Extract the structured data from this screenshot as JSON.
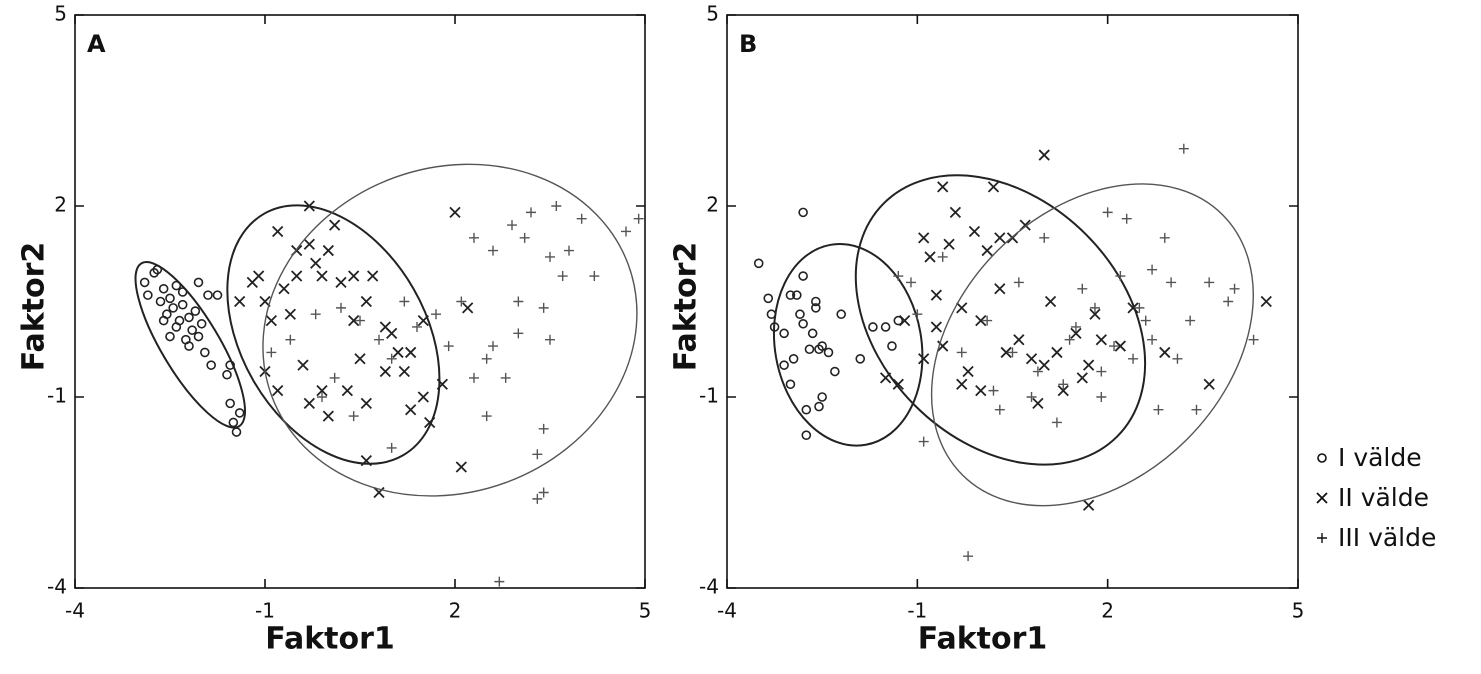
{
  "chart_data": [
    {
      "type": "scatter",
      "title": "A",
      "xlabel": "Faktor1",
      "ylabel": "Faktor2",
      "xlim": [
        -4,
        5
      ],
      "ylim": [
        -4,
        5
      ],
      "xticks": [
        -4,
        -1,
        2,
        5
      ],
      "yticks": [
        -4,
        -1,
        2,
        5
      ],
      "series": [
        {
          "name": "I välde",
          "marker": "o",
          "color": "#222222",
          "x": [
            -2.9,
            -2.85,
            -2.75,
            -2.7,
            -2.65,
            -2.6,
            -2.55,
            -2.5,
            -2.45,
            -2.4,
            -2.4,
            -2.35,
            -2.3,
            -2.25,
            -2.2,
            -2.15,
            -2.1,
            -2.05,
            -2.0,
            -1.95,
            -2.05,
            -1.9,
            -1.85,
            -1.75,
            -1.6,
            -1.55,
            -1.5,
            -1.45,
            -1.4,
            -1.55,
            -2.5,
            -2.6,
            -2.3,
            -2.2
          ],
          "values": [
            0.8,
            0.6,
            0.95,
            1.0,
            0.5,
            0.7,
            0.3,
            0.55,
            0.4,
            0.75,
            0.1,
            0.2,
            0.45,
            -0.1,
            0.25,
            0.05,
            0.35,
            -0.05,
            0.15,
            -0.3,
            0.8,
            0.6,
            -0.5,
            0.6,
            -0.65,
            -1.1,
            -1.4,
            -1.55,
            -1.25,
            -0.5,
            -0.05,
            0.2,
            0.65,
            -0.2
          ],
          "ellipse": {
            "cx": -2.18,
            "cy": -0.18,
            "rx": 1.5,
            "ry": 0.45,
            "angle": -59
          }
        },
        {
          "name": "II välde",
          "marker": "x",
          "color": "#222222",
          "x": [
            -1.4,
            -1.2,
            -1.1,
            -0.8,
            -0.6,
            -0.5,
            -0.3,
            -0.2,
            -0.1,
            0,
            0.1,
            0.2,
            0.4,
            0.6,
            0.7,
            -1.0,
            -0.9,
            -0.7,
            -1.0,
            -0.8,
            -0.4,
            -0.3,
            -0.1,
            0,
            0.3,
            0.5,
            0.6,
            0.9,
            0.6,
            0.8,
            1.3,
            1.5,
            1.6,
            1.1,
            1.2,
            1.5,
            1.8,
            2.1,
            2.2,
            2.0,
            1.0,
            1.3,
            0.4,
            0.9,
            -0.3,
            -0.5
          ],
          "values": [
            0.5,
            0.8,
            0.9,
            1.6,
            0.3,
            1.3,
            2.0,
            1.1,
            0.9,
            1.3,
            1.7,
            0.8,
            0.9,
            0.5,
            0.9,
            0.5,
            0.2,
            0.7,
            -0.6,
            -0.9,
            -0.5,
            -1.1,
            -0.9,
            -1.3,
            -0.9,
            -0.4,
            -1.1,
            -0.6,
            -2.0,
            -2.5,
            -1.2,
            -1.0,
            -1.4,
            -0.3,
            -0.6,
            0.2,
            -0.8,
            -2.1,
            0.4,
            1.9,
            0.0,
            -0.3,
            0.2,
            0.1,
            1.4,
            0.9
          ],
          "ellipse": {
            "cx": 0.08,
            "cy": -0.02,
            "rx": 2.2,
            "ry": 1.45,
            "angle": -60
          }
        },
        {
          "name": "III välde",
          "marker": "+",
          "color": "#555555",
          "x": [
            -0.9,
            -0.6,
            -0.2,
            0.2,
            0.5,
            0.8,
            1.0,
            1.2,
            1.4,
            1.7,
            1.9,
            2.1,
            2.3,
            2.5,
            2.5,
            2.6,
            2.6,
            2.8,
            2.9,
            3.0,
            3.1,
            3.2,
            3.3,
            3.4,
            3.4,
            3.5,
            3.6,
            3.7,
            3.8,
            4.0,
            4.2,
            4.7,
            4.9,
            2.7,
            3.4,
            3.3,
            0.4,
            1.0,
            0.1,
            -0.1,
            2.3,
            3.0,
            3.5
          ],
          "values": [
            -0.3,
            -0.1,
            0.3,
            0.4,
            0.2,
            -0.1,
            -0.4,
            0.5,
            0.1,
            0.3,
            -0.2,
            0.5,
            1.5,
            -0.4,
            -1.3,
            1.3,
            -0.2,
            -0.7,
            1.7,
            0.5,
            1.5,
            1.9,
            -1.9,
            0.4,
            -1.5,
            1.2,
            2.0,
            0.9,
            1.3,
            1.8,
            0.9,
            1.6,
            1.8,
            -3.9,
            -2.5,
            -2.6,
            -1.3,
            -1.8,
            -0.7,
            -1.0,
            -0.7,
            0.0,
            -0.1
          ],
          "ellipse": {
            "cx": 1.92,
            "cy": 0.05,
            "rx": 3.0,
            "ry": 2.55,
            "angle": 20
          }
        }
      ]
    },
    {
      "type": "scatter",
      "title": "B",
      "xlabel": "Faktor1",
      "ylabel": "Faktor2",
      "xlim": [
        -4,
        5
      ],
      "ylim": [
        -4,
        5
      ],
      "xticks": [
        -4,
        -1,
        2,
        5
      ],
      "yticks": [
        -4,
        -1,
        2,
        5
      ],
      "series": [
        {
          "name": "I välde",
          "marker": "o",
          "color": "#222222",
          "x": [
            -3.5,
            -3.35,
            -3.3,
            -3.25,
            -3.1,
            -3.1,
            -3.0,
            -2.95,
            -2.9,
            -2.85,
            -2.8,
            -2.8,
            -2.7,
            -2.6,
            -2.55,
            -2.55,
            -2.5,
            -2.75,
            -2.75,
            -2.8,
            -2.6,
            -2.4,
            -2.3,
            -2.2,
            -1.9,
            -1.7,
            -1.5,
            -1.3,
            -1.4,
            -3.0,
            -2.65,
            -2.5
          ],
          "values": [
            1.1,
            0.55,
            0.3,
            0.1,
            0.0,
            -0.5,
            -0.8,
            -0.4,
            0.6,
            0.3,
            0.9,
            0.15,
            -0.25,
            0.4,
            -0.25,
            -1.15,
            -1.0,
            -1.2,
            -1.6,
            1.9,
            0.5,
            -0.3,
            -0.6,
            0.3,
            -0.4,
            0.1,
            0.1,
            0.2,
            -0.2,
            0.6,
            0.0,
            -0.2
          ],
          "ellipse": {
            "cx": -2.09,
            "cy": -0.18,
            "rx": 1.6,
            "ry": 1.15,
            "angle": -80
          }
        },
        {
          "name": "II välde",
          "marker": "x",
          "color": "#222222",
          "x": [
            -1.5,
            -1.3,
            -1.2,
            -0.9,
            -0.8,
            -0.7,
            -0.7,
            -0.6,
            -0.4,
            -0.3,
            -0.2,
            -0.1,
            0,
            0.1,
            0.2,
            0.3,
            0.5,
            0.7,
            0.4,
            0.6,
            0.8,
            0.9,
            1.0,
            1.1,
            1.2,
            1.3,
            1.5,
            1.6,
            1.7,
            1.8,
            1.0,
            1.7,
            -0.9,
            -0.6,
            -0.3,
            0.0,
            1.9,
            2.2,
            2.4,
            2.9,
            3.6,
            4.5,
            -0.5,
            0.3
          ],
          "values": [
            -0.7,
            -0.8,
            0.2,
            1.5,
            1.2,
            0.6,
            0.1,
            2.3,
            1.9,
            0.4,
            -0.6,
            1.6,
            0.2,
            1.3,
            2.3,
            1.5,
            1.5,
            1.7,
            -0.3,
            -0.1,
            -0.4,
            -1.1,
            -0.5,
            0.5,
            -0.3,
            -0.9,
            0.0,
            -0.7,
            -0.5,
            0.3,
            2.8,
            -2.7,
            -0.4,
            -0.2,
            -0.8,
            -0.9,
            -0.1,
            -0.2,
            0.4,
            -0.3,
            -0.8,
            0.5,
            1.4,
            0.7
          ],
          "ellipse": {
            "cx": 0.31,
            "cy": 0.21,
            "rx": 2.6,
            "ry": 1.9,
            "angle": -45
          }
        },
        {
          "name": "III välde",
          "marker": "+",
          "color": "#555555",
          "x": [
            -1.3,
            -1.1,
            -1.0,
            -0.9,
            -0.6,
            -0.3,
            -0.2,
            0.1,
            0.2,
            0.3,
            0.5,
            0.8,
            0.9,
            1.2,
            1.3,
            1.5,
            1.6,
            1.8,
            1.9,
            2.0,
            2.1,
            2.3,
            2.5,
            2.7,
            2.8,
            3.0,
            3.2,
            3.3,
            3.6,
            3.9,
            4.0,
            4.3,
            1.9,
            2.4,
            2.7,
            3.1,
            3.4,
            1.0,
            0.6,
            2.9,
            2.6,
            1.4,
            2.2
          ],
          "values": [
            0.9,
            0.8,
            0.3,
            -1.7,
            1.2,
            -0.3,
            -3.5,
            0.2,
            -0.9,
            -1.2,
            -0.3,
            -1.0,
            -0.6,
            -1.4,
            -0.8,
            0.1,
            0.7,
            0.4,
            -0.6,
            1.9,
            -0.2,
            1.8,
            0.4,
            1.0,
            -1.2,
            0.8,
            2.9,
            0.2,
            0.8,
            0.5,
            0.7,
            -0.1,
            -1.0,
            -0.4,
            -0.1,
            -0.4,
            -1.2,
            1.5,
            0.8,
            1.5,
            0.2,
            -0.1,
            0.9
          ],
          "ellipse": {
            "cx": 1.76,
            "cy": -0.18,
            "rx": 2.9,
            "ry": 2.1,
            "angle": 45
          }
        }
      ]
    }
  ]
}
